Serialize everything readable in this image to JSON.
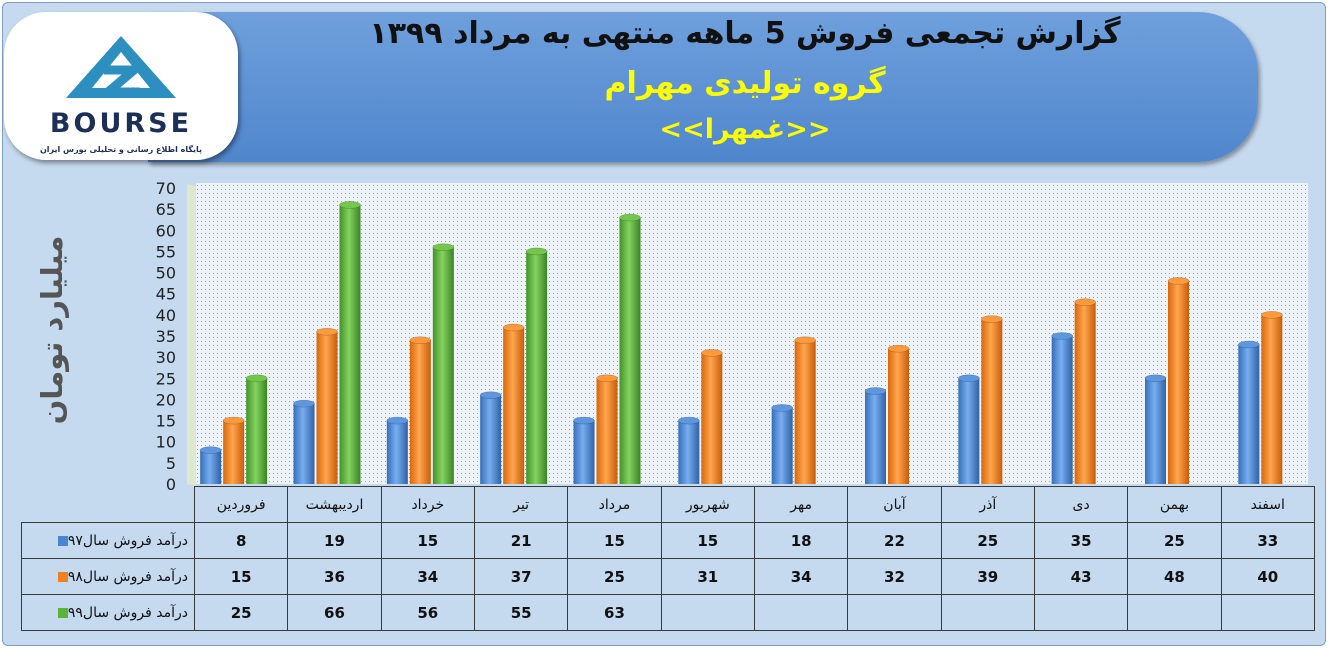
{
  "header": {
    "title_line1": "گزارش تجمعی فروش  5 ماهه منتهی به مرداد ۱۳۹۹",
    "title_line2": "گروه تولیدی مهرام",
    "title_line3": "<<غمهرا>>"
  },
  "logo": {
    "brand": "BOURSE",
    "tagline": "پایگاه اطلاع رسانی و تحلیلی بورس ایران"
  },
  "colors": {
    "series97": "#4a86d0",
    "series98": "#f2801f",
    "series99": "#5cb338",
    "banner": "#5b8fd4",
    "title_accent": "#ffff00"
  },
  "chart_data": {
    "type": "bar",
    "title": "گزارش تجمعی فروش  5 ماهه منتهی به مرداد ۱۳۹۹",
    "ylabel": "میلیارد تومان",
    "ylim": [
      0,
      70
    ],
    "yticks": [
      0,
      5,
      10,
      15,
      20,
      25,
      30,
      35,
      40,
      45,
      50,
      55,
      60,
      65,
      70
    ],
    "grid": false,
    "legend_position": "table-left",
    "categories": [
      "فروردین",
      "اردیبهشت",
      "خرداد",
      "تیر",
      "مرداد",
      "شهریور",
      "مهر",
      "آبان",
      "آذر",
      "دی",
      "بهمن",
      "اسفند"
    ],
    "series": [
      {
        "name": "درآمد فروش سال۹۷",
        "color": "#4a86d0",
        "values": [
          8,
          19,
          15,
          21,
          15,
          15,
          18,
          22,
          25,
          35,
          25,
          33
        ]
      },
      {
        "name": "درآمد فروش سال۹۸",
        "color": "#f2801f",
        "values": [
          15,
          36,
          34,
          37,
          25,
          31,
          34,
          32,
          39,
          43,
          48,
          40
        ]
      },
      {
        "name": "درآمد فروش سال۹۹",
        "color": "#5cb338",
        "values": [
          25,
          66,
          56,
          55,
          63,
          null,
          null,
          null,
          null,
          null,
          null,
          null
        ]
      }
    ]
  }
}
